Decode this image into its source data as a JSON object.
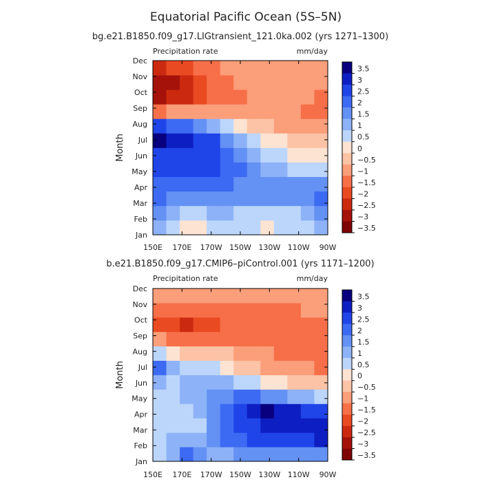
{
  "title": "Equatorial Pacific Ocean (5S–5N)",
  "colorbar": {
    "colors": [
      "#08007e",
      "#0d1fc2",
      "#1f44e8",
      "#3d6af2",
      "#6491f4",
      "#8db2f7",
      "#bcd6fb",
      "#fde3d2",
      "#fcc3a6",
      "#fb9e7a",
      "#f76f48",
      "#ea4a22",
      "#cc2a10",
      "#a5120a",
      "#7e0503"
    ],
    "labels": [
      "3.5",
      "3",
      "2.5",
      "2",
      "1.5",
      "1",
      "0.5",
      "0",
      "−0.5",
      "−1",
      "−1.5",
      "−2",
      "−2.5",
      "−3",
      "−3.5"
    ],
    "levels": [
      -3.5,
      -3,
      -2.5,
      -2,
      -1.5,
      -1,
      -0.5,
      0,
      0.5,
      1,
      1.5,
      2,
      2.5,
      3,
      3.5
    ]
  },
  "chart_data": [
    {
      "type": "heatmap",
      "title": "bg.e21.B1850.f09_g17.LIGtransient_121.0ka.002 (yrs 1271–1300)",
      "variable": "Precipitation rate",
      "units": "mm/day",
      "ylabel": "Month",
      "x_ticks": [
        "150E",
        "170E",
        "170W",
        "150W",
        "130W",
        "110W",
        "90W"
      ],
      "y_ticks": [
        "Jan",
        "Feb",
        "Mar",
        "Apr",
        "May",
        "Jun",
        "Jul",
        "Aug",
        "Sep",
        "Oct",
        "Nov",
        "Dec"
      ],
      "x": [
        "150E",
        "160E",
        "170E",
        "180",
        "170W",
        "160W",
        "150W",
        "140W",
        "130W",
        "120W",
        "110W",
        "100W",
        "90W"
      ],
      "values": [
        [
          0.8,
          0.4,
          -0.3,
          -0.2,
          0.3,
          0.2,
          0.1,
          0.1,
          0.0,
          0.1,
          0.2,
          0.3,
          0.8
        ],
        [
          1.3,
          1.0,
          0.3,
          0.5,
          0.9,
          0.7,
          0.5,
          0.3,
          0.3,
          0.4,
          0.5,
          0.7,
          1.2
        ],
        [
          1.7,
          1.4,
          1.1,
          1.2,
          1.4,
          1.3,
          1.2,
          1.1,
          1.2,
          1.3,
          1.4,
          1.5,
          2.0
        ],
        [
          2.0,
          1.8,
          1.7,
          1.8,
          1.9,
          1.7,
          1.5,
          1.4,
          1.5,
          1.4,
          1.3,
          1.3,
          1.5
        ],
        [
          2.1,
          2.2,
          2.2,
          2.2,
          2.2,
          1.9,
          1.6,
          1.3,
          1.0,
          0.7,
          0.5,
          0.5,
          0.5
        ],
        [
          2.3,
          2.4,
          2.4,
          2.3,
          2.2,
          1.8,
          1.3,
          0.8,
          0.4,
          0.1,
          -0.2,
          -0.3,
          -0.3
        ],
        [
          3.2,
          3.0,
          3.0,
          2.5,
          2.1,
          1.4,
          0.8,
          0.3,
          -0.1,
          -0.4,
          -0.6,
          -0.8,
          -0.9
        ],
        [
          2.4,
          2.0,
          1.6,
          1.1,
          0.6,
          0.1,
          -0.4,
          -0.7,
          -0.9,
          -1.0,
          -1.1,
          -1.2,
          -1.2
        ],
        [
          -1.7,
          -1.4,
          -1.3,
          -1.1,
          -1.0,
          -1.1,
          -1.2,
          -1.2,
          -1.3,
          -1.3,
          -1.2,
          -1.5,
          -1.8
        ],
        [
          -3.4,
          -2.9,
          -2.5,
          -2.2,
          -1.8,
          -1.5,
          -1.5,
          -1.3,
          -1.2,
          -1.2,
          -1.2,
          -1.3,
          -1.6
        ],
        [
          -3.3,
          -3.0,
          -2.5,
          -2.2,
          -1.8,
          -1.5,
          -1.3,
          -1.1,
          -1.1,
          -1.1,
          -1.2,
          -1.2,
          -1.4
        ],
        [
          -2.5,
          -2.2,
          -2.0,
          -1.8,
          -1.5,
          -1.2,
          -1.0,
          -1.0,
          -1.0,
          -1.0,
          -1.0,
          -1.0,
          -1.2
        ]
      ]
    },
    {
      "type": "heatmap",
      "title": "b.e21.B1850.f09_g17.CMIP6–piControl.001 (yrs 1171–1200)",
      "variable": "Precipitation rate",
      "units": "mm/day",
      "ylabel": "Month",
      "x_ticks": [
        "150E",
        "170E",
        "170W",
        "150W",
        "130W",
        "110W",
        "90W"
      ],
      "y_ticks": [
        "Jan",
        "Feb",
        "Mar",
        "Apr",
        "May",
        "Jun",
        "Jul",
        "Aug",
        "Sep",
        "Oct",
        "Nov",
        "Dec"
      ],
      "x": [
        "150E",
        "160E",
        "170E",
        "180",
        "170W",
        "160W",
        "150W",
        "140W",
        "130W",
        "120W",
        "110W",
        "100W",
        "90W"
      ],
      "values": [
        [
          0.3,
          0.8,
          1.8,
          1.2,
          0.8,
          1.0,
          1.2,
          1.3,
          1.4,
          1.4,
          1.3,
          1.3,
          1.4
        ],
        [
          0.4,
          0.6,
          0.8,
          0.8,
          1.2,
          1.6,
          1.9,
          2.1,
          2.2,
          2.3,
          2.4,
          2.5,
          2.6
        ],
        [
          0.5,
          0.4,
          0.3,
          0.5,
          1.2,
          1.7,
          2.1,
          2.4,
          2.6,
          2.7,
          2.8,
          2.9,
          3.0
        ],
        [
          0.5,
          0.4,
          0.4,
          0.6,
          1.3,
          1.9,
          2.4,
          2.9,
          3.5,
          3.0,
          2.7,
          2.5,
          2.3
        ],
        [
          0.2,
          0.3,
          0.6,
          0.8,
          1.2,
          1.5,
          1.7,
          1.7,
          1.5,
          1.2,
          0.9,
          0.6,
          0.4
        ],
        [
          0.8,
          0.5,
          0.7,
          0.8,
          0.9,
          0.8,
          0.5,
          0.2,
          -0.1,
          -0.4,
          -0.6,
          -0.8,
          -0.9
        ],
        [
          1.6,
          0.6,
          0.2,
          0.2,
          0.1,
          -0.2,
          -0.5,
          -0.8,
          -1.0,
          -1.2,
          -1.3,
          -1.4,
          -1.5
        ],
        [
          0.4,
          -0.3,
          -0.5,
          -0.6,
          -0.7,
          -0.9,
          -1.1,
          -1.3,
          -1.4,
          -1.5,
          -1.5,
          -1.6,
          -1.9
        ],
        [
          -1.4,
          -1.6,
          -1.8,
          -1.7,
          -1.5,
          -1.5,
          -1.5,
          -1.6,
          -1.6,
          -1.6,
          -1.6,
          -1.6,
          -1.8
        ],
        [
          -2.1,
          -2.2,
          -2.6,
          -2.3,
          -2.0,
          -1.8,
          -1.7,
          -1.7,
          -1.7,
          -1.7,
          -1.7,
          -1.6,
          -1.7
        ],
        [
          -1.6,
          -1.8,
          -1.9,
          -1.8,
          -1.6,
          -1.5,
          -1.5,
          -1.5,
          -1.5,
          -1.5,
          -1.5,
          -1.4,
          -1.4
        ],
        [
          -1.0,
          -1.2,
          -1.3,
          -1.3,
          -1.2,
          -1.2,
          -1.2,
          -1.2,
          -1.2,
          -1.2,
          -1.1,
          -1.1,
          -1.2
        ]
      ]
    }
  ]
}
